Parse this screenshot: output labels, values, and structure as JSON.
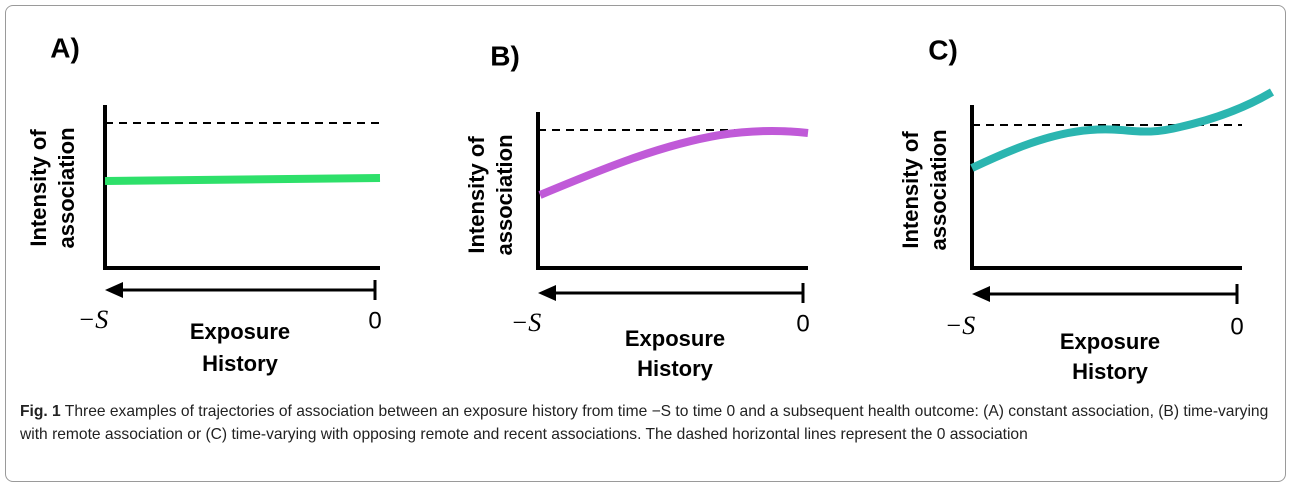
{
  "panels": [
    {
      "label": "A)",
      "y_axis_label": [
        "Intensity of",
        "association"
      ],
      "x_axis_label": [
        "Exposure",
        "History"
      ],
      "x_start": "−S",
      "x_end": "0"
    },
    {
      "label": "B)",
      "y_axis_label": [
        "Intensity of",
        "association"
      ],
      "x_axis_label": [
        "Exposure",
        "History"
      ],
      "x_start": "−S",
      "x_end": "0"
    },
    {
      "label": "C)",
      "y_axis_label": [
        "Intensity of",
        "association"
      ],
      "x_axis_label": [
        "Exposure",
        "History"
      ],
      "x_start": "−S",
      "x_end": "0"
    }
  ],
  "caption": {
    "label": "Fig. 1",
    "text": "Three examples of trajectories of association between an exposure history from time −S to time 0 and a subsequent health outcome: (A) constant association, (B) time-varying with remote association or (C) time-varying with opposing remote and recent associations. The dashed horizontal lines represent the 0 association"
  }
}
